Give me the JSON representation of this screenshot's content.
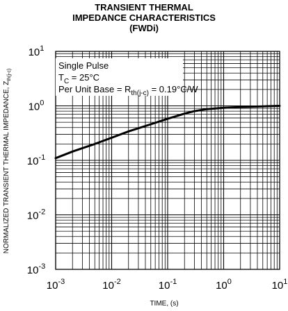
{
  "chart_data": {
    "type": "line",
    "title_lines": [
      "TRANSIENT THERMAL",
      "IMPEDANCE CHARACTERISTICS",
      "(FWDi)"
    ],
    "xlabel": "TIME, (s)",
    "ylabel": {
      "main": "NORMALIZED TRANSIENT THERMAL IMPEDANCE, Z",
      "sub": "th(j-c)"
    },
    "x_scale": "log",
    "y_scale": "log",
    "xlim": [
      0.001,
      10
    ],
    "ylim": [
      0.001,
      10
    ],
    "grid": true,
    "x_ticks": [
      {
        "base": "10",
        "exp": "-3",
        "value": 0.001
      },
      {
        "base": "10",
        "exp": "-2",
        "value": 0.01
      },
      {
        "base": "10",
        "exp": "-1",
        "value": 0.1
      },
      {
        "base": "10",
        "exp": "0",
        "value": 1
      },
      {
        "base": "10",
        "exp": "1",
        "value": 10
      }
    ],
    "y_ticks": [
      {
        "base": "10",
        "exp": "1",
        "value": 10
      },
      {
        "base": "10",
        "exp": "0",
        "value": 1
      },
      {
        "base": "10",
        "exp": "-1",
        "value": 0.1
      },
      {
        "base": "10",
        "exp": "-2",
        "value": 0.01
      },
      {
        "base": "10",
        "exp": "-3",
        "value": 0.001
      }
    ],
    "annotations": {
      "line1": "Single Pulse",
      "line2_main": "T",
      "line2_sub": "C",
      "line2_rest": " = 25°C",
      "line3_main": "Per Unit Base = R",
      "line3_sub": "th(j-c)",
      "line3_rest": " = 0.19°C/W"
    },
    "series": [
      {
        "x": [
          0.001,
          0.002,
          0.005,
          0.01,
          0.02,
          0.05,
          0.1,
          0.2,
          0.3,
          0.5,
          1,
          2,
          5,
          10
        ],
        "y": [
          0.11,
          0.145,
          0.2,
          0.26,
          0.34,
          0.46,
          0.58,
          0.72,
          0.8,
          0.87,
          0.92,
          0.95,
          0.98,
          1.0
        ]
      }
    ],
    "colors": {
      "grid": "#000000",
      "line": "#000000",
      "background": "#ffffff"
    }
  }
}
